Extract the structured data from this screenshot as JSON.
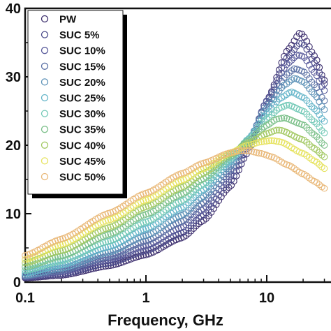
{
  "chart_data": {
    "type": "scatter",
    "xlabel": "Frequency, GHz",
    "ylabel": "",
    "x_scale": "log",
    "xlim": [
      0.1,
      30
    ],
    "ylim": [
      0,
      40
    ],
    "x_ticks": [
      "0.1",
      "1",
      "10"
    ],
    "y_ticks": [
      "0",
      "10",
      "20",
      "30",
      "40"
    ],
    "y_tick_values": [
      0,
      10,
      20,
      30,
      40
    ],
    "x_tick_values": [
      0.1,
      1,
      10
    ],
    "legend_position": "top-left",
    "grid": false,
    "series": [
      {
        "name": "PW",
        "color": "#3d2f6e",
        "x": [
          0.1,
          0.2,
          0.5,
          1,
          2,
          3,
          5,
          7,
          10,
          15,
          19,
          20,
          25,
          30
        ],
        "y": [
          0.6,
          1.0,
          2.4,
          4.0,
          6.5,
          9.0,
          14.0,
          19.0,
          26.5,
          34.0,
          36.5,
          36.0,
          33.0,
          29.5
        ]
      },
      {
        "name": "SUC 5%",
        "color": "#4a4a8a",
        "x": [
          0.1,
          0.2,
          0.5,
          1,
          2,
          3,
          5,
          7,
          10,
          15,
          19,
          20,
          25,
          30
        ],
        "y": [
          0.7,
          1.2,
          2.8,
          4.6,
          7.2,
          9.8,
          14.8,
          19.5,
          26.5,
          33.0,
          35.0,
          34.8,
          32.0,
          29.0
        ]
      },
      {
        "name": "SUC 10%",
        "color": "#5a5c9c",
        "x": [
          0.1,
          0.2,
          0.5,
          1,
          2,
          3,
          5,
          7,
          10,
          15,
          18,
          20,
          25,
          30
        ],
        "y": [
          0.8,
          1.5,
          3.3,
          5.3,
          8.0,
          10.7,
          15.6,
          20.0,
          26.4,
          32.0,
          33.2,
          33.0,
          30.6,
          28.0
        ]
      },
      {
        "name": "SUC 15%",
        "color": "#5d73a6",
        "x": [
          0.1,
          0.2,
          0.5,
          1,
          2,
          3,
          5,
          7,
          10,
          15,
          17,
          20,
          25,
          30
        ],
        "y": [
          0.9,
          1.7,
          3.8,
          6.0,
          8.9,
          11.6,
          16.3,
          20.5,
          26.0,
          30.5,
          31.2,
          30.8,
          28.8,
          26.5
        ]
      },
      {
        "name": "SUC 20%",
        "color": "#5e93b8",
        "x": [
          0.1,
          0.2,
          0.5,
          1,
          2,
          3,
          5,
          7,
          10,
          14,
          17,
          20,
          25,
          30
        ],
        "y": [
          1.0,
          2.0,
          4.4,
          6.8,
          9.8,
          12.5,
          17.0,
          20.8,
          25.4,
          28.8,
          29.8,
          29.3,
          27.4,
          25.2
        ]
      },
      {
        "name": "SUC 25%",
        "color": "#64b5c9",
        "x": [
          0.1,
          0.2,
          0.5,
          1,
          2,
          3,
          5,
          7,
          10,
          13,
          16,
          20,
          25,
          30
        ],
        "y": [
          1.3,
          2.5,
          5.2,
          7.8,
          10.9,
          13.5,
          17.6,
          20.9,
          24.6,
          26.9,
          27.8,
          27.0,
          25.3,
          23.5
        ]
      },
      {
        "name": "SUC 30%",
        "color": "#73c9b7",
        "x": [
          0.1,
          0.2,
          0.5,
          1,
          2,
          3,
          5,
          7,
          10,
          13,
          15,
          20,
          25,
          30
        ],
        "y": [
          1.7,
          3.1,
          6.0,
          8.8,
          11.9,
          14.3,
          18.0,
          20.8,
          23.9,
          25.5,
          25.9,
          25.0,
          23.4,
          21.8
        ]
      },
      {
        "name": "SUC 35%",
        "color": "#7cc08a",
        "x": [
          0.1,
          0.2,
          0.5,
          1,
          2,
          3,
          5,
          7,
          10,
          12,
          14,
          20,
          25,
          30
        ],
        "y": [
          2.2,
          3.8,
          7.0,
          9.9,
          12.9,
          15.1,
          18.4,
          20.6,
          22.9,
          23.8,
          24.0,
          23.0,
          21.5,
          20.0
        ]
      },
      {
        "name": "SUC 40%",
        "color": "#a3c964",
        "x": [
          0.1,
          0.2,
          0.5,
          1,
          2,
          3,
          5,
          7,
          10,
          12,
          13,
          20,
          25,
          30
        ],
        "y": [
          2.8,
          4.6,
          8.0,
          11.0,
          13.9,
          15.9,
          18.7,
          20.3,
          21.7,
          22.2,
          22.2,
          20.8,
          19.5,
          18.3
        ]
      },
      {
        "name": "SUC 45%",
        "color": "#e6e35f",
        "x": [
          0.1,
          0.2,
          0.5,
          1,
          2,
          3,
          5,
          7,
          9,
          11,
          13,
          20,
          25,
          30
        ],
        "y": [
          3.3,
          5.5,
          9.1,
          12.0,
          14.9,
          16.6,
          18.9,
          20.0,
          20.5,
          20.7,
          20.5,
          18.8,
          17.7,
          16.6
        ]
      },
      {
        "name": "SUC 50%",
        "color": "#e9b878",
        "x": [
          0.1,
          0.2,
          0.5,
          1,
          2,
          3,
          5,
          6,
          7,
          9,
          11,
          15,
          20,
          25,
          30
        ],
        "y": [
          3.9,
          6.3,
          10.1,
          13.0,
          15.9,
          17.4,
          18.9,
          19.2,
          19.2,
          18.8,
          18.3,
          17.1,
          15.8,
          14.7,
          13.7
        ]
      }
    ]
  }
}
